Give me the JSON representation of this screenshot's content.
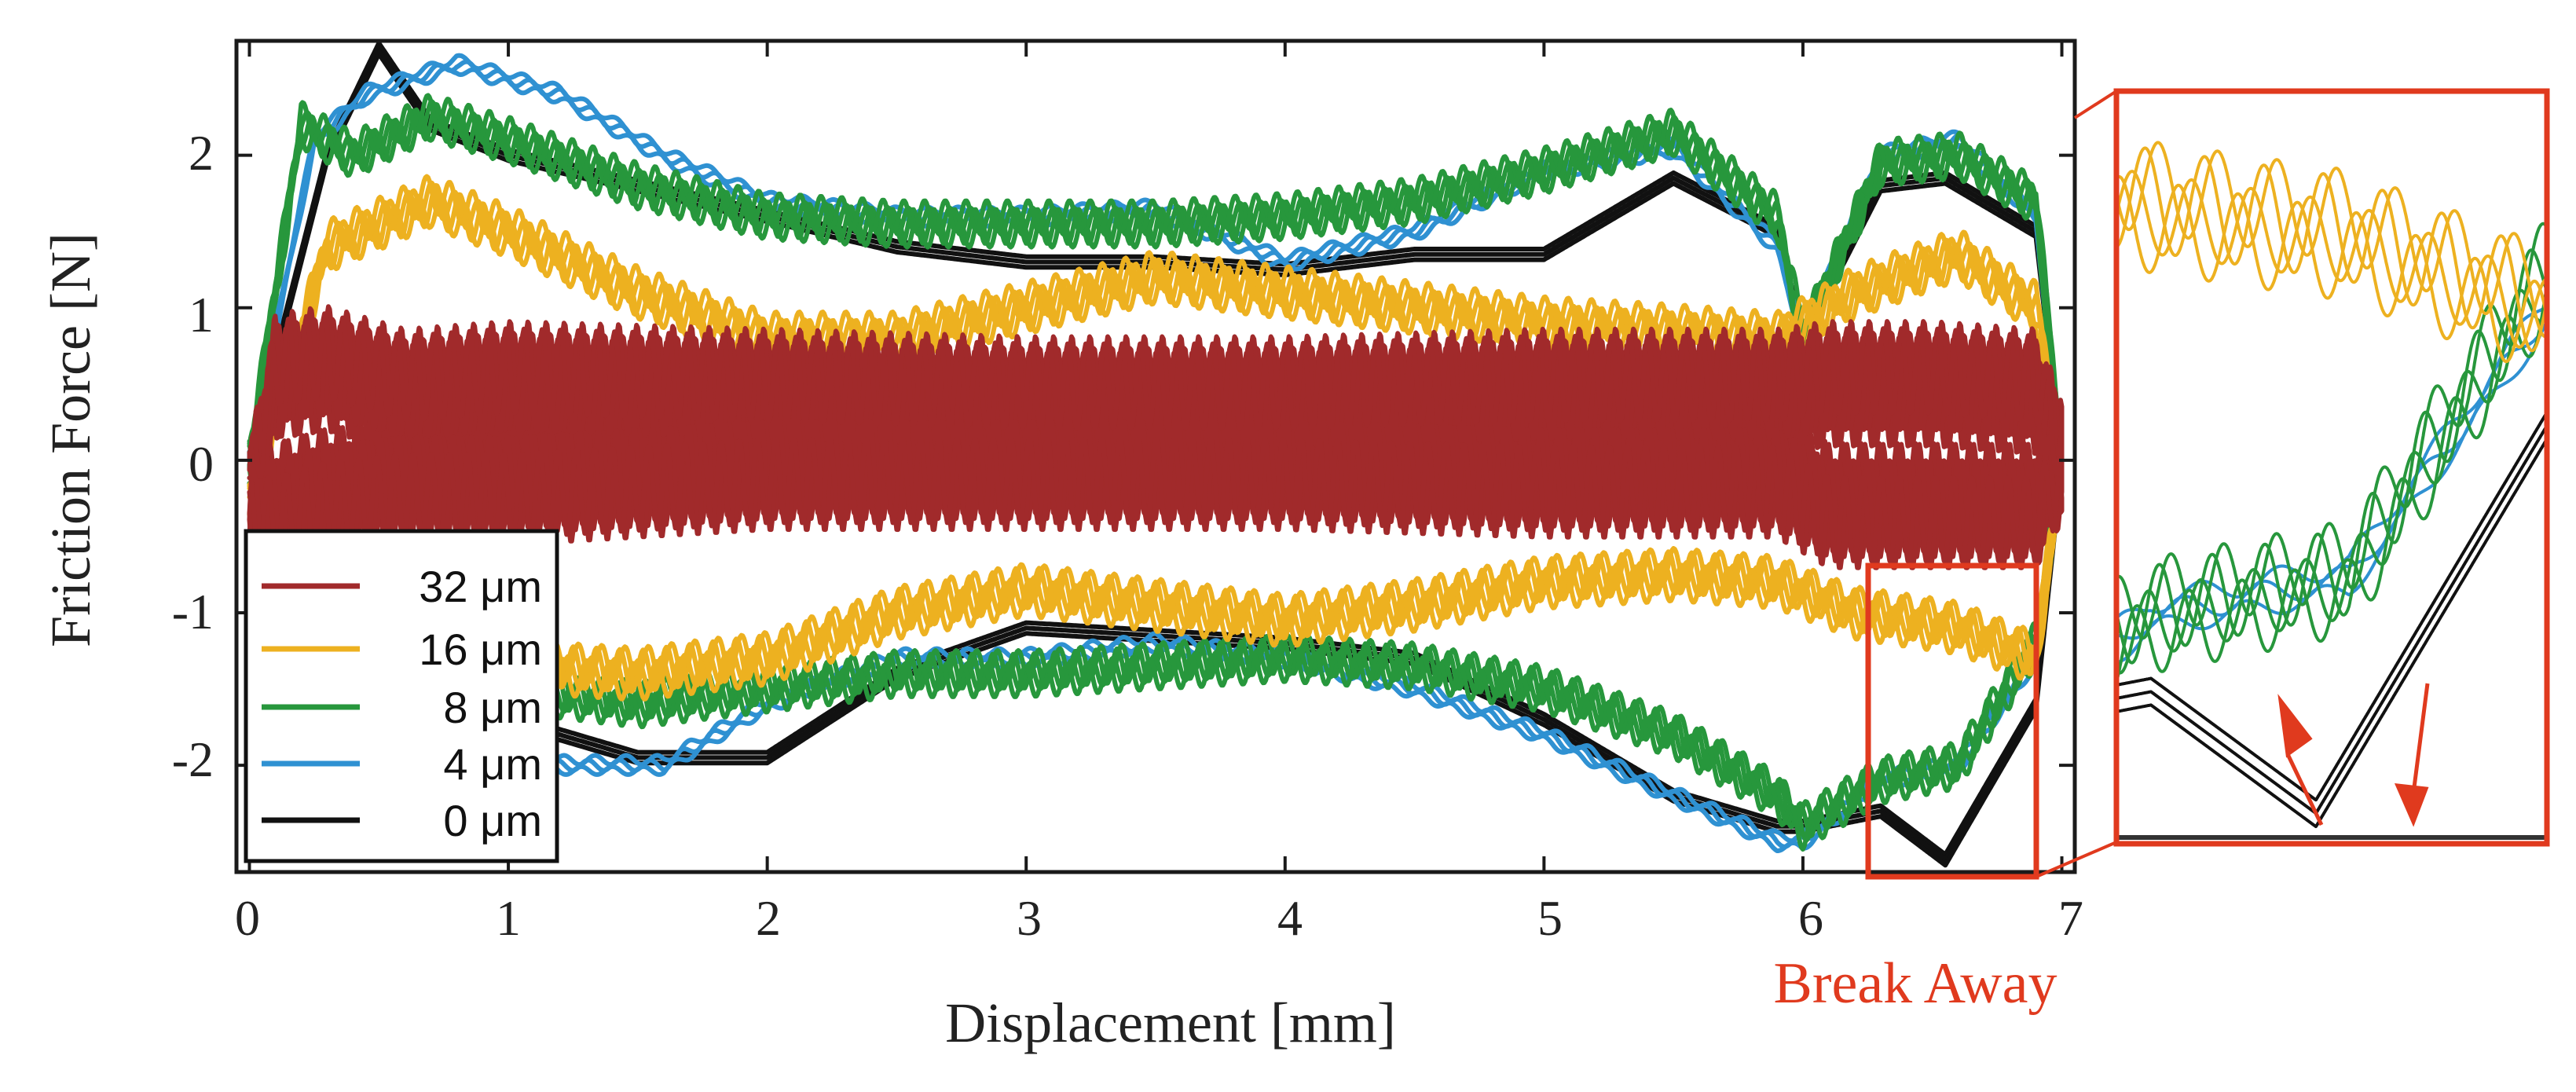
{
  "chart_data": {
    "type": "line",
    "xlabel": "Displacement [mm]",
    "ylabel": "Friction Force [N]",
    "xlim": [
      -0.05,
      7.05
    ],
    "ylim": [
      -2.7,
      2.75
    ],
    "xticks": [
      0,
      1,
      2,
      3,
      4,
      5,
      6,
      7
    ],
    "yticks": [
      -2,
      -1,
      0,
      1,
      2
    ],
    "xtick_labels": [
      "0",
      "1",
      "2",
      "3",
      "4",
      "5",
      "6",
      "7"
    ],
    "ytick_labels": [
      "-2",
      "-1",
      "0",
      "1",
      "2"
    ],
    "legend_position": "bottom-left",
    "annotation": "Break Away",
    "zoom_region": {
      "x": [
        6.25,
        6.9
      ],
      "y": [
        -2.7,
        -0.72
      ]
    },
    "colors": {
      "32um": "#a12a2b",
      "16um": "#edb120",
      "8um": "#27973c",
      "4um": "#2f91d2",
      "0um": "#111111",
      "annotation": "#e03a1e"
    },
    "series": [
      {
        "name": "32 μm",
        "color": "#a12a2b",
        "width": 6,
        "osc_amp": 0.32,
        "osc_period": 0.07,
        "traces": 6,
        "x": [
          0.0,
          0.1,
          0.3,
          0.6,
          1.0,
          2.0,
          3.0,
          4.0,
          5.0,
          5.9,
          6.1,
          6.5,
          6.9,
          7.0
        ],
        "upper": [
          -0.3,
          0.55,
          0.6,
          0.45,
          0.5,
          0.45,
          0.4,
          0.4,
          0.45,
          0.45,
          0.5,
          0.5,
          0.45,
          0.0
        ],
        "lower": [
          -0.3,
          -0.3,
          -0.2,
          -0.15,
          -0.15,
          -0.05,
          -0.05,
          -0.05,
          -0.1,
          -0.1,
          -0.3,
          -0.3,
          -0.3,
          0.0
        ]
      },
      {
        "name": "16 μm",
        "color": "#edb120",
        "width": 6,
        "osc_amp": 0.12,
        "osc_period": 0.09,
        "traces": 4,
        "x": [
          0.0,
          0.3,
          0.7,
          1.0,
          1.5,
          2.0,
          2.5,
          3.0,
          3.5,
          4.0,
          4.5,
          5.0,
          5.5,
          5.9,
          6.2,
          6.6,
          6.9,
          7.0
        ],
        "upper": [
          -0.3,
          1.4,
          1.7,
          1.5,
          1.1,
          0.8,
          0.8,
          1.0,
          1.2,
          1.1,
          1.0,
          0.9,
          0.85,
          0.8,
          1.1,
          1.35,
          1.0,
          0.0
        ],
        "lower": [
          -0.3,
          -0.9,
          -1.2,
          -1.35,
          -1.4,
          -1.3,
          -1.0,
          -0.85,
          -0.95,
          -1.05,
          -0.95,
          -0.8,
          -0.75,
          -0.8,
          -1.0,
          -1.1,
          -1.3,
          0.0
        ]
      },
      {
        "name": "8 μm",
        "color": "#27973c",
        "width": 6,
        "osc_amp": 0.1,
        "osc_period": 0.08,
        "traces": 4,
        "x": [
          0.0,
          0.2,
          0.4,
          0.7,
          1.0,
          1.5,
          2.0,
          2.5,
          3.0,
          3.5,
          4.0,
          4.5,
          5.0,
          5.5,
          5.9,
          6.0,
          6.3,
          6.6,
          6.9,
          7.0
        ],
        "upper": [
          0.0,
          2.2,
          2.0,
          2.25,
          2.1,
          1.8,
          1.6,
          1.55,
          1.55,
          1.55,
          1.6,
          1.7,
          1.9,
          2.15,
          1.6,
          0.8,
          1.95,
          2.0,
          1.7,
          0.0
        ],
        "lower": [
          0.0,
          -1.2,
          -1.3,
          -1.4,
          -1.5,
          -1.6,
          -1.5,
          -1.4,
          -1.4,
          -1.35,
          -1.3,
          -1.35,
          -1.5,
          -1.8,
          -2.2,
          -2.4,
          -2.1,
          -2.0,
          -1.2,
          0.0
        ]
      },
      {
        "name": "4 μm",
        "color": "#2f91d2",
        "width": 6,
        "osc_amp": 0.03,
        "osc_period": 0.12,
        "traces": 3,
        "x": [
          0.0,
          0.25,
          0.45,
          0.8,
          1.2,
          1.6,
          2.0,
          2.5,
          3.0,
          3.5,
          4.0,
          4.5,
          5.0,
          5.5,
          5.9,
          6.0,
          6.3,
          6.6,
          6.9,
          7.0
        ],
        "upper": [
          0.0,
          2.1,
          2.4,
          2.6,
          2.4,
          2.0,
          1.7,
          1.6,
          1.6,
          1.65,
          1.3,
          1.5,
          1.9,
          2.05,
          1.4,
          0.8,
          2.0,
          2.1,
          1.6,
          0.0
        ],
        "lower": [
          0.0,
          -1.3,
          -1.6,
          -1.85,
          -2.0,
          -2.0,
          -1.6,
          -1.3,
          -1.3,
          -1.2,
          -1.3,
          -1.5,
          -1.8,
          -2.2,
          -2.5,
          -2.5,
          -2.1,
          -2.0,
          -1.3,
          0.0
        ]
      },
      {
        "name": "0 μm",
        "color": "#111111",
        "width": 6,
        "osc_amp": 0.0,
        "osc_period": 0.1,
        "traces": 3,
        "x": [
          0.0,
          0.3,
          0.5,
          0.7,
          1.0,
          1.5,
          2.0,
          2.5,
          3.0,
          3.5,
          4.0,
          4.5,
          5.0,
          5.5,
          5.9,
          6.0,
          6.3,
          6.55,
          6.9,
          7.0
        ],
        "upper": [
          0.0,
          2.0,
          2.7,
          2.2,
          2.0,
          1.8,
          1.6,
          1.4,
          1.3,
          1.3,
          1.25,
          1.35,
          1.35,
          1.85,
          1.5,
          0.8,
          1.8,
          1.85,
          1.5,
          0.0
        ],
        "lower": [
          0.0,
          -1.1,
          -1.4,
          -1.6,
          -1.7,
          -1.95,
          -1.95,
          -1.4,
          -1.1,
          -1.15,
          -1.2,
          -1.3,
          -1.7,
          -2.2,
          -2.4,
          -2.4,
          -2.3,
          -2.62,
          -1.6,
          0.0
        ]
      }
    ]
  }
}
